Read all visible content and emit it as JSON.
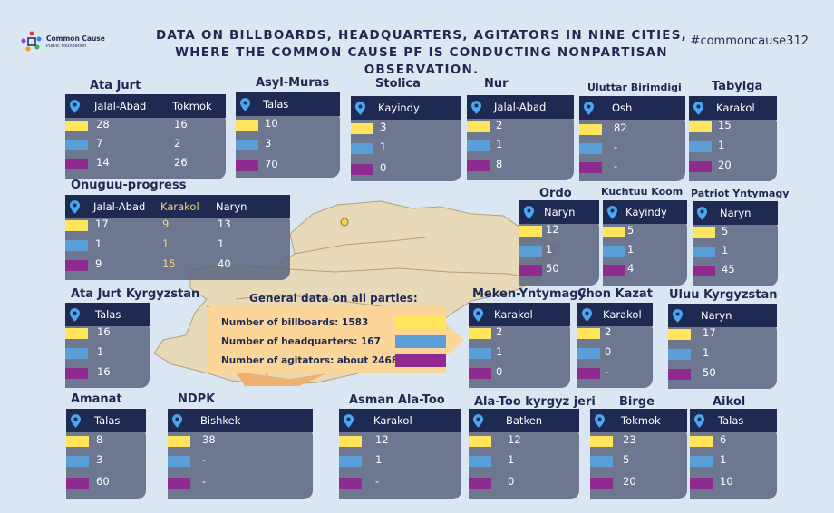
{
  "title": "DATA ON BILLBOARDS, HEADQUARTERS, AGITATORS IN NINE CITIES, WHERE THE COMMON CAUSE PF IS CONDUCTING NONPARTISAN OBSERVATION.",
  "hashtag": "#commoncause312",
  "logo": {
    "name": "Common Cause",
    "sub": "Public Foundation"
  },
  "colors": {
    "billboards": "#ffe45c",
    "headquarters": "#5a9fd8",
    "agitators": "#8e2a90",
    "header": "#1f2a52",
    "map": "#e8d9b9"
  },
  "general": {
    "title": "General data on all parties:",
    "billboards": "Number of billboards: 1583",
    "headquarters": "Number of headquarters: 167",
    "agitators": "Number of agitators: about 2468"
  },
  "parties": [
    {
      "name": "Ata Jurt",
      "cities": [
        "Jalal-Abad",
        "Tokmok"
      ],
      "values": [
        [
          "28",
          "16"
        ],
        [
          "7",
          "2"
        ],
        [
          "14",
          "26"
        ]
      ]
    },
    {
      "name": "Asyl-Muras",
      "cities": [
        "Talas"
      ],
      "values": [
        [
          "10"
        ],
        [
          "3"
        ],
        [
          "70"
        ]
      ]
    },
    {
      "name": "Stolica",
      "cities": [
        "Kayindy"
      ],
      "values": [
        [
          "3"
        ],
        [
          "1"
        ],
        [
          "0"
        ]
      ]
    },
    {
      "name": "Nur",
      "cities": [
        "Jalal-Abad"
      ],
      "values": [
        [
          "2"
        ],
        [
          "1"
        ],
        [
          "8"
        ]
      ]
    },
    {
      "name": "Uluttar Birimdigi",
      "cities": [
        "Osh"
      ],
      "values": [
        [
          "82"
        ],
        [
          "-"
        ],
        [
          "-"
        ]
      ]
    },
    {
      "name": "Tabylga",
      "cities": [
        "Karakol"
      ],
      "values": [
        [
          "15"
        ],
        [
          "1"
        ],
        [
          "20"
        ]
      ]
    },
    {
      "name": "Onuguu-progress",
      "cities": [
        "Jalal-Abad",
        "Karakol",
        "Naryn"
      ],
      "values": [
        [
          "17",
          "9",
          "13"
        ],
        [
          "1",
          "1",
          "1"
        ],
        [
          "9",
          "15",
          "40"
        ]
      ]
    },
    {
      "name": "Ordo",
      "cities": [
        "Naryn"
      ],
      "values": [
        [
          "12"
        ],
        [
          "1"
        ],
        [
          "50"
        ]
      ]
    },
    {
      "name": "Kuchtuu Koom",
      "cities": [
        "Kayindy"
      ],
      "values": [
        [
          "5"
        ],
        [
          "1"
        ],
        [
          "4"
        ]
      ]
    },
    {
      "name": "Patriot Yntymagy",
      "cities": [
        "Naryn"
      ],
      "values": [
        [
          "5"
        ],
        [
          "1"
        ],
        [
          "45"
        ]
      ]
    },
    {
      "name": "Ata Jurt Kyrgyzstan",
      "cities": [
        "Talas"
      ],
      "values": [
        [
          "16"
        ],
        [
          "1"
        ],
        [
          "16"
        ]
      ]
    },
    {
      "name": "Meken-Yntymagy",
      "cities": [
        "Karakol"
      ],
      "values": [
        [
          "2"
        ],
        [
          "1"
        ],
        [
          "0"
        ]
      ]
    },
    {
      "name": "Chon Kazat",
      "cities": [
        "Karakol"
      ],
      "values": [
        [
          "2"
        ],
        [
          "0"
        ],
        [
          "-"
        ]
      ]
    },
    {
      "name": "Uluu Kyrgyzstan",
      "cities": [
        "Naryn"
      ],
      "values": [
        [
          "17"
        ],
        [
          "1"
        ],
        [
          "50"
        ]
      ]
    },
    {
      "name": "Amanat",
      "cities": [
        "Talas"
      ],
      "values": [
        [
          "8"
        ],
        [
          "3"
        ],
        [
          "60"
        ]
      ]
    },
    {
      "name": "NDPK",
      "cities": [
        "Bishkek"
      ],
      "values": [
        [
          "38"
        ],
        [
          "-"
        ],
        [
          "-"
        ]
      ]
    },
    {
      "name": "Asman Ala-Too",
      "cities": [
        "Karakol"
      ],
      "values": [
        [
          "12"
        ],
        [
          "1"
        ],
        [
          "-"
        ]
      ]
    },
    {
      "name": "Ala-Too kyrgyz jeri",
      "cities": [
        "Batken"
      ],
      "values": [
        [
          "12"
        ],
        [
          "1"
        ],
        [
          "0"
        ]
      ]
    },
    {
      "name": "Birge",
      "cities": [
        "Tokmok"
      ],
      "values": [
        [
          "23"
        ],
        [
          "5"
        ],
        [
          "20"
        ]
      ]
    },
    {
      "name": "Aikol",
      "cities": [
        "Talas"
      ],
      "values": [
        [
          "6"
        ],
        [
          "1"
        ],
        [
          "10"
        ]
      ]
    }
  ]
}
